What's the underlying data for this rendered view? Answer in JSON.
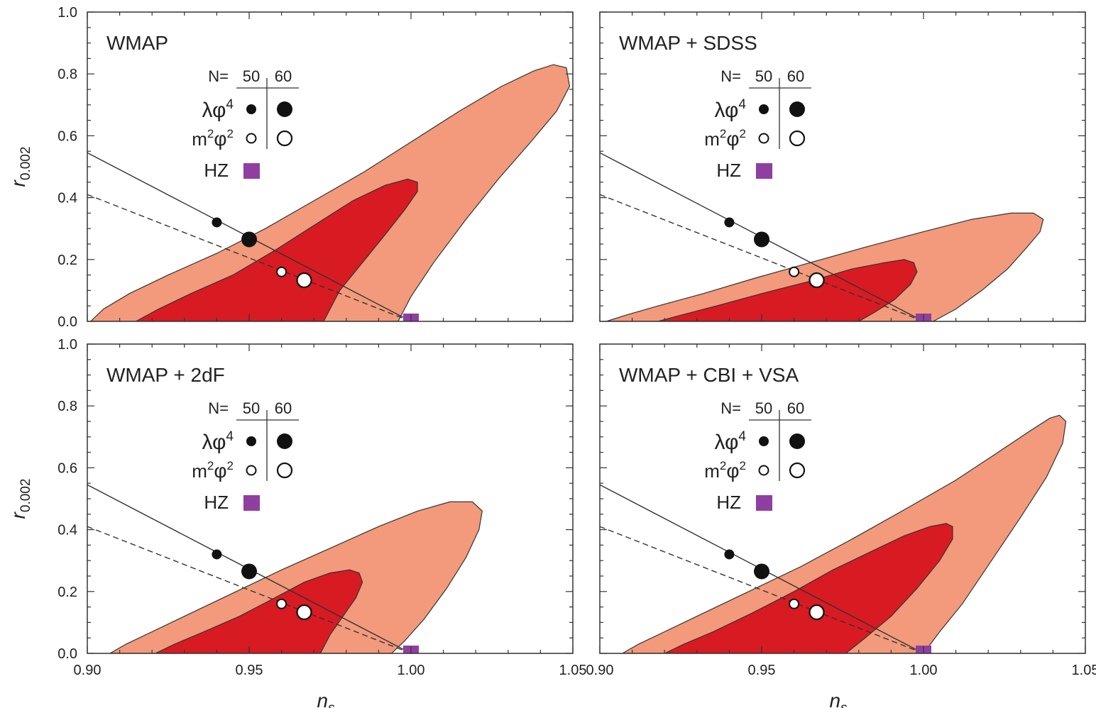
{
  "chart_data": {
    "type": "scatter",
    "xlabel_base": "n",
    "xlabel_sub": "s",
    "ylabel_base": "r",
    "ylabel_sub": "0.002",
    "xlim": [
      0.9,
      1.05
    ],
    "ylim": [
      0.0,
      1.0
    ],
    "x_ticks": [
      "0.90",
      "0.95",
      "1.00",
      "1.05"
    ],
    "y_ticks": [
      "0.0",
      "0.2",
      "0.4",
      "0.6",
      "0.8",
      "1.0"
    ],
    "grid": false,
    "colors": {
      "contour_95": "#f29a7b",
      "contour_68": "#d81a22",
      "hz": "#8e3fa0",
      "point": "#111111"
    },
    "legend": {
      "header_n": "N=",
      "header_50": "50",
      "header_60": "60",
      "lambda_base": "λφ",
      "lambda_sup": "4",
      "m_pre": "m",
      "m_sup1": "2",
      "m_mid": "φ",
      "m_sup2": "2",
      "hz_label": "HZ"
    },
    "lines": {
      "lambda_phi4": [
        [
          0.9,
          0.545
        ],
        [
          1.0,
          0.0
        ]
      ],
      "m2phi2": [
        [
          0.9,
          0.41
        ],
        [
          1.0,
          0.0
        ]
      ]
    },
    "points": {
      "lambda_phi4": [
        {
          "N": 50,
          "ns": 0.94,
          "r": 0.32
        },
        {
          "N": 60,
          "ns": 0.95,
          "r": 0.265
        }
      ],
      "m2phi2": [
        {
          "N": 50,
          "ns": 0.96,
          "r": 0.16
        },
        {
          "N": 60,
          "ns": 0.967,
          "r": 0.133
        }
      ],
      "HZ": {
        "ns": 1.0,
        "r": 0.0
      }
    },
    "panels": [
      {
        "title": "WMAP",
        "contour_95": [
          [
            0.901,
            0.0
          ],
          [
            0.905,
            0.04
          ],
          [
            0.913,
            0.09
          ],
          [
            0.925,
            0.15
          ],
          [
            0.94,
            0.22
          ],
          [
            0.955,
            0.3
          ],
          [
            0.97,
            0.39
          ],
          [
            0.985,
            0.48
          ],
          [
            1.0,
            0.58
          ],
          [
            1.015,
            0.68
          ],
          [
            1.028,
            0.76
          ],
          [
            1.038,
            0.81
          ],
          [
            1.044,
            0.83
          ],
          [
            1.048,
            0.82
          ],
          [
            1.049,
            0.76
          ],
          [
            1.045,
            0.68
          ],
          [
            1.037,
            0.58
          ],
          [
            1.027,
            0.46
          ],
          [
            1.017,
            0.33
          ],
          [
            1.007,
            0.19
          ],
          [
            1.0,
            0.08
          ],
          [
            0.996,
            0.0
          ]
        ],
        "contour_68": [
          [
            0.915,
            0.0
          ],
          [
            0.922,
            0.04
          ],
          [
            0.932,
            0.09
          ],
          [
            0.945,
            0.15
          ],
          [
            0.958,
            0.23
          ],
          [
            0.97,
            0.31
          ],
          [
            0.982,
            0.39
          ],
          [
            0.992,
            0.44
          ],
          [
            0.999,
            0.46
          ],
          [
            1.002,
            0.45
          ],
          [
            1.002,
            0.42
          ],
          [
            0.998,
            0.36
          ],
          [
            0.992,
            0.28
          ],
          [
            0.985,
            0.19
          ],
          [
            0.978,
            0.1
          ],
          [
            0.973,
            0.0
          ]
        ]
      },
      {
        "title": "WMAP + SDSS",
        "contour_95": [
          [
            0.902,
            0.0
          ],
          [
            0.908,
            0.02
          ],
          [
            0.918,
            0.05
          ],
          [
            0.932,
            0.09
          ],
          [
            0.948,
            0.14
          ],
          [
            0.965,
            0.19
          ],
          [
            0.982,
            0.24
          ],
          [
            1.0,
            0.29
          ],
          [
            1.015,
            0.33
          ],
          [
            1.027,
            0.35
          ],
          [
            1.034,
            0.35
          ],
          [
            1.037,
            0.33
          ],
          [
            1.036,
            0.29
          ],
          [
            1.032,
            0.24
          ],
          [
            1.026,
            0.17
          ],
          [
            1.018,
            0.1
          ],
          [
            1.01,
            0.04
          ],
          [
            1.003,
            0.0
          ]
        ],
        "contour_68": [
          [
            0.918,
            0.0
          ],
          [
            0.925,
            0.02
          ],
          [
            0.936,
            0.05
          ],
          [
            0.95,
            0.09
          ],
          [
            0.965,
            0.13
          ],
          [
            0.978,
            0.17
          ],
          [
            0.988,
            0.19
          ],
          [
            0.994,
            0.2
          ],
          [
            0.997,
            0.19
          ],
          [
            0.998,
            0.16
          ],
          [
            0.996,
            0.12
          ],
          [
            0.991,
            0.07
          ],
          [
            0.985,
            0.03
          ],
          [
            0.98,
            0.0
          ]
        ]
      },
      {
        "title": "WMAP + 2dF",
        "contour_95": [
          [
            0.907,
            0.0
          ],
          [
            0.912,
            0.03
          ],
          [
            0.92,
            0.07
          ],
          [
            0.932,
            0.13
          ],
          [
            0.946,
            0.2
          ],
          [
            0.96,
            0.27
          ],
          [
            0.975,
            0.34
          ],
          [
            0.99,
            0.41
          ],
          [
            1.002,
            0.46
          ],
          [
            1.012,
            0.49
          ],
          [
            1.019,
            0.49
          ],
          [
            1.022,
            0.46
          ],
          [
            1.021,
            0.4
          ],
          [
            1.017,
            0.31
          ],
          [
            1.011,
            0.21
          ],
          [
            1.004,
            0.11
          ],
          [
            0.998,
            0.04
          ],
          [
            0.994,
            0.0
          ]
        ],
        "contour_68": [
          [
            0.921,
            0.0
          ],
          [
            0.927,
            0.03
          ],
          [
            0.936,
            0.07
          ],
          [
            0.947,
            0.12
          ],
          [
            0.958,
            0.18
          ],
          [
            0.967,
            0.23
          ],
          [
            0.975,
            0.26
          ],
          [
            0.981,
            0.27
          ],
          [
            0.984,
            0.26
          ],
          [
            0.985,
            0.23
          ],
          [
            0.983,
            0.18
          ],
          [
            0.979,
            0.12
          ],
          [
            0.975,
            0.06
          ],
          [
            0.972,
            0.0
          ]
        ]
      },
      {
        "title": "WMAP + CBI + VSA",
        "contour_95": [
          [
            0.907,
            0.0
          ],
          [
            0.912,
            0.03
          ],
          [
            0.92,
            0.07
          ],
          [
            0.932,
            0.13
          ],
          [
            0.946,
            0.2
          ],
          [
            0.962,
            0.28
          ],
          [
            0.978,
            0.37
          ],
          [
            0.995,
            0.47
          ],
          [
            1.01,
            0.56
          ],
          [
            1.023,
            0.65
          ],
          [
            1.033,
            0.72
          ],
          [
            1.039,
            0.76
          ],
          [
            1.042,
            0.77
          ],
          [
            1.044,
            0.75
          ],
          [
            1.043,
            0.68
          ],
          [
            1.038,
            0.57
          ],
          [
            1.03,
            0.44
          ],
          [
            1.021,
            0.3
          ],
          [
            1.012,
            0.16
          ],
          [
            1.005,
            0.07
          ],
          [
            1.0,
            0.0
          ]
        ],
        "contour_68": [
          [
            0.92,
            0.0
          ],
          [
            0.926,
            0.03
          ],
          [
            0.935,
            0.07
          ],
          [
            0.947,
            0.13
          ],
          [
            0.96,
            0.2
          ],
          [
            0.972,
            0.27
          ],
          [
            0.984,
            0.33
          ],
          [
            0.994,
            0.38
          ],
          [
            1.002,
            0.41
          ],
          [
            1.007,
            0.42
          ],
          [
            1.009,
            0.41
          ],
          [
            1.009,
            0.37
          ],
          [
            1.005,
            0.3
          ],
          [
            0.998,
            0.21
          ],
          [
            0.99,
            0.12
          ],
          [
            0.982,
            0.05
          ],
          [
            0.976,
            0.0
          ]
        ]
      }
    ]
  }
}
